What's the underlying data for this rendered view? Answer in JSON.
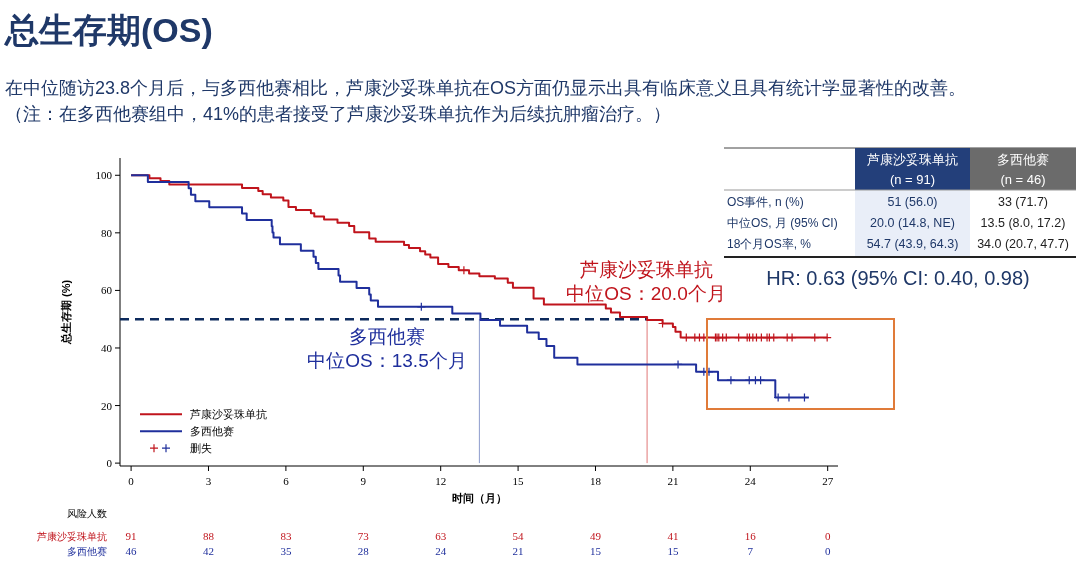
{
  "chart_data": [
    {
      "type": "step",
      "title": "总生存期(OS)",
      "subtitle": "在中位随访23.8个月后，与多西他赛相比，芦康沙妥珠单抗在OS方面仍显示出具有临床意义且具有统计学显著性的改善。",
      "xlabel": "时间（月）",
      "ylabel": "总生存期 (%)",
      "xlim": [
        -0.43,
        27.4
      ],
      "xticks": [
        0,
        3,
        6,
        9,
        12,
        15,
        18,
        21,
        24,
        27
      ],
      "ylim": [
        -1,
        106
      ],
      "yticks": [
        0,
        20,
        40,
        60,
        80,
        100
      ],
      "grid": false,
      "legend": "bottom left",
      "series": [
        {
          "name": "芦康沙妥珠单抗",
          "color": "#c0141c",
          "x": [
            0,
            0.71,
            1.14,
            1.48,
            4.3,
            4.93,
            5.1,
            5.42,
            5.9,
            6.1,
            6.39,
            6.97,
            7.1,
            7.48,
            8.0,
            8.45,
            8.65,
            9.23,
            9.48,
            10.58,
            10.77,
            11.2,
            11.4,
            11.6,
            11.9,
            12.3,
            12.7,
            13.1,
            13.5,
            14.1,
            14.6,
            14.8,
            15.6,
            16.0,
            18.4,
            18.6,
            18.95,
            20.0,
            20.6,
            21.0,
            21.1,
            21.3,
            26.98
          ],
          "values": [
            100,
            99,
            98,
            96.8,
            95.6,
            94.5,
            93.4,
            92.3,
            91.2,
            89,
            87.9,
            86.8,
            85.7,
            84.6,
            83.5,
            82.4,
            80.2,
            78,
            76.9,
            75.8,
            74.7,
            73.6,
            72.5,
            71.4,
            69.2,
            68.1,
            67,
            65.9,
            64.9,
            64.1,
            62.7,
            60.9,
            57.2,
            55.1,
            53.7,
            52.3,
            50.8,
            49.7,
            48.5,
            47.3,
            45.6,
            43.6,
            43.6
          ]
        },
        {
          "name": "多西他赛",
          "color": "#1f2f9c",
          "x": [
            0,
            0.65,
            2.23,
            2.32,
            2.49,
            3.03,
            4.3,
            4.48,
            5.45,
            5.48,
            5.52,
            5.77,
            6.58,
            7.07,
            7.16,
            7.26,
            8.04,
            8.1,
            8.74,
            9.23,
            9.29,
            9.57,
            12.45,
            13.54,
            14.3,
            15.35,
            15.8,
            16.1,
            16.4,
            17.3,
            21.9,
            22.75,
            24.97,
            26.27
          ],
          "values": [
            100,
            97.7,
            95.5,
            93.2,
            91,
            88.9,
            86.7,
            84.5,
            82.3,
            80.1,
            78.4,
            76,
            73.8,
            71.7,
            69.5,
            67.4,
            65.2,
            63,
            60.8,
            58.6,
            56.5,
            54.3,
            52,
            49.7,
            47.7,
            45.4,
            43.1,
            40.7,
            36.6,
            34.3,
            31.7,
            28.8,
            22.8,
            22.8
          ]
        },
        {
          "name": "删失",
          "type": "scatter",
          "marker": "cross",
          "x": [
            12.9,
            20.6,
            21.52,
            21.85,
            22.03,
            22.2,
            22.65,
            22.71,
            22.78,
            22.93,
            23.07,
            23.55,
            23.88,
            23.97,
            24.1,
            24.24,
            24.43,
            24.65,
            24.74,
            24.91,
            25.43,
            25.62,
            26.5,
            26.98,
            11.25,
            21.2,
            22.2,
            22.4,
            23.25,
            23.96,
            24.2,
            24.4,
            25.08,
            25.5,
            26.1
          ],
          "values": [
            67,
            48.5,
            43.6,
            43.6,
            43.6,
            43.6,
            43.6,
            43.6,
            43.6,
            43.6,
            43.6,
            43.6,
            43.6,
            43.6,
            43.6,
            43.6,
            43.6,
            43.6,
            43.6,
            43.6,
            43.6,
            43.6,
            43.6,
            43.6,
            54.3,
            34.3,
            31.7,
            31.7,
            28.8,
            28.8,
            28.8,
            28.8,
            22.8,
            22.8,
            22.8
          ],
          "colors": [
            "#c0141c",
            "#c0141c",
            "#c0141c",
            "#c0141c",
            "#c0141c",
            "#c0141c",
            "#c0141c",
            "#c0141c",
            "#c0141c",
            "#c0141c",
            "#c0141c",
            "#c0141c",
            "#c0141c",
            "#c0141c",
            "#c0141c",
            "#c0141c",
            "#c0141c",
            "#c0141c",
            "#c0141c",
            "#c0141c",
            "#c0141c",
            "#c0141c",
            "#c0141c",
            "#c0141c",
            "#1f2f9c",
            "#1f2f9c",
            "#1f2f9c",
            "#1f2f9c",
            "#1f2f9c",
            "#1f2f9c",
            "#1f2f9c",
            "#1f2f9c",
            "#1f2f9c",
            "#1f2f9c",
            "#1f2f9c"
          ]
        }
      ],
      "ref_lines": [
        {
          "axis": "y",
          "value": 50,
          "color": "#0d2a5c",
          "line_style": "dashed"
        },
        {
          "axis": "x",
          "value": 13.5,
          "color": "#8c9bcc",
          "line_style": "solid"
        },
        {
          "axis": "x",
          "value": 20.0,
          "color": "#e07878",
          "line_style": "solid"
        }
      ],
      "annotations": [
        "（注：在多西他赛组中，41%的患者接受了芦康沙妥珠单抗作为后续抗肿瘤治疗。）",
        "芦康沙妥珠单抗",
        "中位OS：20.0个月",
        "多西他赛",
        "中位OS：13.5个月"
      ]
    },
    {
      "type": "other",
      "title": "风险人数",
      "y_categories": [
        "芦康沙妥珠单抗",
        "多西他赛"
      ],
      "colors": [
        "#c0141c",
        "#1f2f9c"
      ],
      "cell_labels": [
        [
          "91",
          "88",
          "83",
          "73",
          "63",
          "54",
          "49",
          "41",
          "16",
          "0"
        ],
        [
          "46",
          "42",
          "35",
          "28",
          "24",
          "21",
          "15",
          "15",
          "7",
          "0"
        ]
      ]
    },
    {
      "type": "other",
      "categories": [
        "芦康沙妥珠单抗\n(n = 91)",
        "多西他赛\n(n = 46)"
      ],
      "colors": [
        "#233f7a",
        "#6b6b6b"
      ],
      "y_categories": [
        "OS事件, n (%)",
        "中位OS, 月 (95% CI)",
        "18个月OS率, %"
      ],
      "cell_labels": [
        [
          "51 (56.0)",
          "33 (71.7)"
        ],
        [
          "20.0 (14.8, NE)",
          "13.5 (8.0, 17.2)"
        ],
        [
          "54.7 (43.9, 64.3)",
          "34.0 (20.7, 47.7)"
        ]
      ],
      "annotations": [
        "HR: 0.63 (95% CI: 0.40, 0.98)"
      ]
    }
  ]
}
